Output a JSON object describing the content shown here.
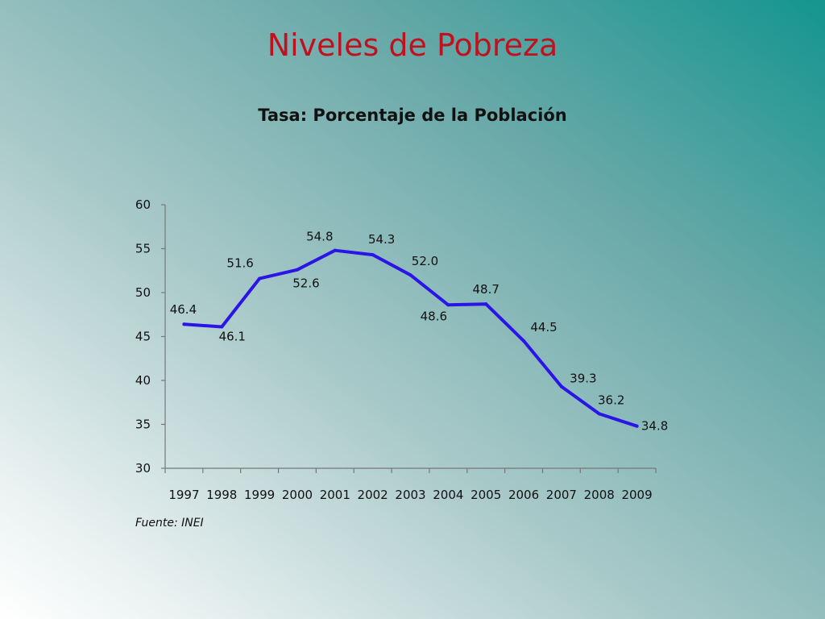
{
  "slide": {
    "title": "Niveles de Pobreza",
    "source": "Fuente: INEI"
  },
  "chart_data": {
    "type": "line",
    "title": "Tasa: Porcentaje de la Población",
    "xlabel": "",
    "ylabel": "",
    "categories": [
      "1997",
      "1998",
      "1999",
      "2000",
      "2001",
      "2002",
      "2003",
      "2004",
      "2005",
      "2006",
      "2007",
      "2008",
      "2009"
    ],
    "series": [
      {
        "values": [
          46.4,
          46.1,
          51.6,
          52.6,
          54.8,
          54.3,
          52.0,
          48.6,
          48.7,
          44.5,
          39.3,
          36.2,
          34.8
        ],
        "labels": [
          "46.4",
          "46.1",
          "51.6",
          "52.6",
          "54.8",
          "54.3",
          "52.0",
          "48.6",
          "48.7",
          "44.5",
          "39.3",
          "36.2",
          "34.8"
        ],
        "color": "#2b14e6"
      }
    ],
    "ylim": [
      30,
      60
    ],
    "yticks": [
      30,
      35,
      40,
      45,
      50,
      55,
      60
    ],
    "grid": false,
    "legend": "none"
  }
}
